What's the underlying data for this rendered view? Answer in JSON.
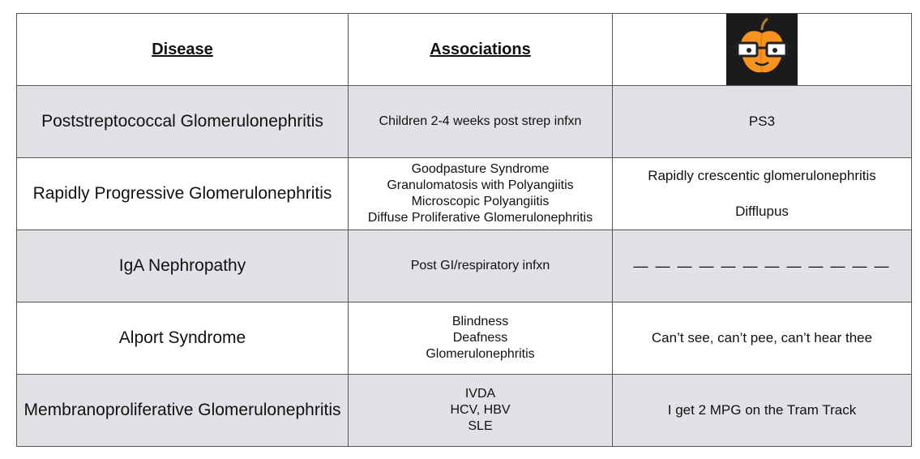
{
  "header": {
    "disease_label": "Disease",
    "associations_label": "Associations",
    "logo_icon": "apple-with-glasses-icon",
    "colors": {
      "apple": "#f7931e",
      "logo_background": "#1b1b1b"
    }
  },
  "colors": {
    "shaded_row": "#e1e1e6",
    "border": "#555555"
  },
  "rows": [
    {
      "disease": "Poststreptococcal Glomerulonephritis",
      "associations": [
        "Children 2-4 weeks post strep infxn"
      ],
      "mnemonic": [
        "PS3"
      ]
    },
    {
      "disease": "Rapidly Progressive Glomerulonephritis",
      "associations": [
        "Goodpasture Syndrome",
        "Granulomatosis with Polyangiitis",
        "Microscopic Polyangiitis",
        "Diffuse Proliferative Glomerulonephritis"
      ],
      "mnemonic": [
        "Rapidly crescentic glomerulonephritis",
        "Difflupus"
      ]
    },
    {
      "disease": "IgA Nephropathy",
      "associations": [
        "Post GI/respiratory infxn"
      ],
      "mnemonic": [
        "— — — — — — — — — — — —"
      ]
    },
    {
      "disease": "Alport Syndrome",
      "associations": [
        "Blindness",
        "Deafness",
        "Glomerulonephritis"
      ],
      "mnemonic": [
        "Can’t see, can’t pee, can’t hear thee"
      ]
    },
    {
      "disease": "Membranoproliferative Glomerulonephritis",
      "associations": [
        "IVDA",
        "HCV, HBV",
        "SLE"
      ],
      "mnemonic": [
        "I get 2 MPG on the Tram Track"
      ]
    }
  ]
}
